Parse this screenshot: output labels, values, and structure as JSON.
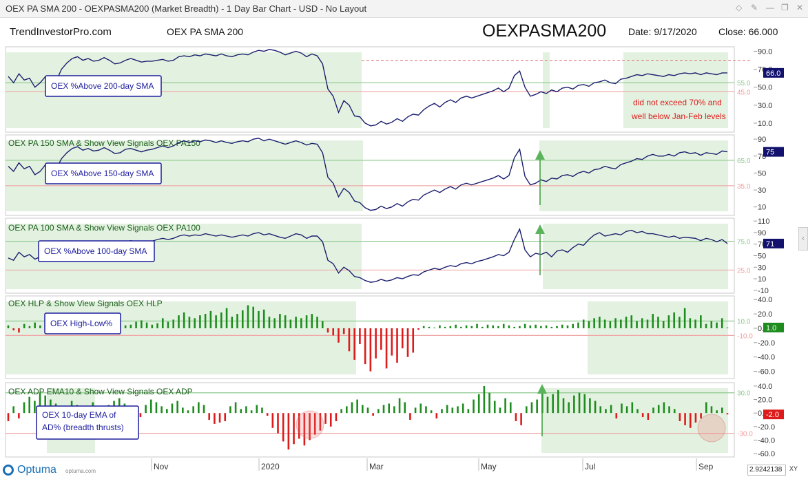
{
  "window": {
    "title": "OEX PA SMA 200 - OEXPASMA200 (Market Breadth) - 1 Day Bar Chart - USD - No Layout"
  },
  "header": {
    "source": "TrendInvestorPro.com",
    "chart_name": "OEX PA SMA 200",
    "symbol": "OEXPASMA200",
    "date": "Date: 9/17/2020",
    "close": "Close: 66.000"
  },
  "footer": {
    "brand": "Optuma",
    "brand_url": "optuma.com",
    "xy_readout": "2.9242138",
    "xy_label": "XY"
  },
  "colors": {
    "line": "#1b1f6e",
    "bar_up": "#1e8c1e",
    "bar_down": "#dd1b1b",
    "shade": "#e3f2e0",
    "upper_line": "#8cc88c",
    "lower_line": "#f0a8a8",
    "note_text": "#dd1b1b",
    "label_box_border": "#1d1d9e",
    "label_text": "#1d1d9e"
  },
  "chart_data": {
    "type": "line",
    "x_axis_labels": [
      "Nov",
      "2020",
      "Mar",
      "May",
      "Jul",
      "Sep"
    ],
    "panels": [
      {
        "title": "",
        "label_box": "OEX %Above 200-day SMA",
        "kind": "line",
        "yticks": [
          "90.0",
          "70.0",
          "50.0",
          "30.0",
          "10.0"
        ],
        "upper_level": "55.0",
        "lower_level": "45.0",
        "extra_level": 80,
        "last_value": "66.0",
        "note": [
          "did not exceed 70% and",
          "well below Jan-Feb levels"
        ],
        "values": [
          62,
          55,
          65,
          58,
          60,
          50,
          55,
          62,
          60,
          57,
          70,
          77,
          82,
          84,
          80,
          82,
          79,
          80,
          83,
          80,
          76,
          77,
          80,
          82,
          80,
          78,
          79,
          79,
          80,
          81,
          79,
          80,
          84,
          85,
          84,
          86,
          85,
          87,
          86,
          85,
          87,
          85,
          84,
          86,
          87,
          86,
          89,
          91,
          90,
          92,
          91,
          89,
          86,
          88,
          90,
          88,
          84,
          87,
          85,
          76,
          48,
          40,
          22,
          35,
          30,
          18,
          17,
          10,
          7,
          8,
          12,
          9,
          11,
          15,
          12,
          17,
          20,
          19,
          25,
          29,
          32,
          28,
          33,
          36,
          33,
          38,
          40,
          38,
          40,
          42,
          44,
          46,
          49,
          45,
          49,
          63,
          68,
          50,
          40,
          42,
          45,
          43,
          47,
          45,
          49,
          50,
          48,
          52,
          53,
          51,
          55,
          56,
          58,
          55,
          54,
          59,
          60,
          62,
          64,
          63,
          65,
          64,
          63,
          62,
          64,
          63,
          65,
          66,
          65,
          66,
          64,
          66,
          65,
          64,
          66,
          66
        ]
      },
      {
        "title": "OEX PA 150 SMA & Show View Signals OEX PA150",
        "label_box": "OEX %Above 150-day SMA",
        "kind": "line",
        "yticks": [
          "90",
          "70",
          "50",
          "30",
          "10"
        ],
        "upper_level": "65.0",
        "lower_level": "35.0",
        "last_value": "75",
        "values": [
          58,
          52,
          62,
          55,
          58,
          48,
          52,
          60,
          58,
          55,
          67,
          74,
          79,
          81,
          77,
          79,
          76,
          77,
          80,
          77,
          73,
          74,
          78,
          79,
          77,
          75,
          77,
          78,
          80,
          82,
          80,
          82,
          86,
          88,
          86,
          88,
          87,
          89,
          88,
          86,
          88,
          86,
          85,
          87,
          88,
          87,
          90,
          91,
          88,
          90,
          88,
          86,
          84,
          86,
          88,
          86,
          83,
          85,
          84,
          74,
          45,
          38,
          22,
          32,
          27,
          17,
          15,
          9,
          6,
          7,
          11,
          8,
          10,
          14,
          11,
          16,
          19,
          18,
          24,
          27,
          30,
          27,
          31,
          34,
          31,
          36,
          38,
          36,
          38,
          40,
          42,
          44,
          47,
          43,
          47,
          68,
          78,
          46,
          36,
          38,
          42,
          40,
          44,
          43,
          47,
          48,
          46,
          50,
          52,
          50,
          54,
          55,
          58,
          56,
          55,
          60,
          62,
          64,
          67,
          66,
          70,
          72,
          70,
          70,
          72,
          70,
          74,
          75,
          73,
          74,
          71,
          74,
          73,
          72,
          76,
          75
        ]
      },
      {
        "title": "OEX PA 100 SMA & Show View Signals OEX PA100",
        "label_box": "OEX %Above 100-day SMA",
        "kind": "line",
        "yticks": [
          "110",
          "90",
          "70",
          "50",
          "30",
          "10",
          "-10"
        ],
        "upper_level": "75.0",
        "lower_level": "25.0",
        "last_value": "71",
        "values": [
          46,
          42,
          56,
          48,
          52,
          44,
          48,
          54,
          50,
          46,
          60,
          66,
          72,
          74,
          70,
          72,
          68,
          70,
          74,
          70,
          68,
          70,
          74,
          76,
          74,
          72,
          74,
          75,
          78,
          80,
          78,
          80,
          84,
          86,
          84,
          86,
          85,
          88,
          86,
          84,
          86,
          84,
          82,
          84,
          86,
          84,
          88,
          90,
          86,
          88,
          85,
          82,
          80,
          84,
          88,
          86,
          80,
          84,
          84,
          74,
          42,
          36,
          20,
          30,
          24,
          14,
          12,
          7,
          4,
          5,
          9,
          6,
          8,
          12,
          10,
          14,
          17,
          16,
          22,
          25,
          28,
          26,
          30,
          33,
          31,
          36,
          38,
          36,
          40,
          42,
          45,
          48,
          52,
          50,
          56,
          78,
          96,
          60,
          48,
          54,
          52,
          56,
          48,
          58,
          60,
          56,
          64,
          70,
          68,
          78,
          86,
          90,
          84,
          86,
          88,
          86,
          92,
          94,
          90,
          92,
          88,
          88,
          86,
          84,
          82,
          84,
          80,
          82,
          81,
          80,
          76,
          80,
          78,
          74,
          78,
          71
        ]
      },
      {
        "title": "OEX HLP & Show View Signals OEX HLP",
        "label_box": "OEX High-Low%",
        "kind": "bar",
        "yticks": [
          "40.0",
          "20.0",
          "0.0",
          "-20.0",
          "-40.0",
          "-60.0"
        ],
        "upper_level": "10.0",
        "lower_level": "-10.0",
        "last_value": "1.0",
        "values": [
          4,
          -3,
          -6,
          6,
          3,
          8,
          4,
          2,
          5,
          10,
          6,
          4,
          8,
          6,
          3,
          10,
          5,
          8,
          4,
          7,
          12,
          6,
          4,
          5,
          9,
          11,
          8,
          5,
          7,
          14,
          9,
          12,
          18,
          22,
          16,
          14,
          18,
          20,
          24,
          18,
          22,
          28,
          16,
          20,
          25,
          32,
          30,
          24,
          26,
          16,
          14,
          20,
          18,
          12,
          16,
          14,
          18,
          20,
          16,
          10,
          -6,
          -10,
          -20,
          -8,
          -32,
          -44,
          -22,
          -50,
          -60,
          -42,
          -30,
          -56,
          -38,
          -48,
          -28,
          -40,
          -34,
          -2,
          3,
          2,
          1,
          4,
          2,
          3,
          5,
          2,
          4,
          3,
          6,
          2,
          5,
          4,
          3,
          6,
          4,
          2,
          3,
          6,
          4,
          5,
          3,
          4,
          2,
          3,
          5,
          4,
          6,
          8,
          12,
          10,
          14,
          16,
          12,
          10,
          14,
          12,
          16,
          18,
          10,
          14,
          12,
          20,
          16,
          10,
          18,
          22,
          16,
          28,
          14,
          12,
          18,
          6,
          10,
          8,
          14,
          1
        ]
      },
      {
        "title": "OEX ADP EMA10 & Show View Signals OEX ADP",
        "label_box": "OEX 10-day EMA of AD% (breadth thrusts)",
        "kind": "bar",
        "yticks": [
          "40.0",
          "20.0",
          "0.0",
          "-20.0",
          "-40.0",
          "-60.0"
        ],
        "upper_level": "30.0",
        "lower_level": "-30.0",
        "last_value": "-2.0",
        "values": [
          -12,
          10,
          -8,
          16,
          24,
          18,
          30,
          26,
          20,
          14,
          10,
          6,
          18,
          12,
          -6,
          8,
          16,
          10,
          -4,
          12,
          18,
          22,
          14,
          8,
          10,
          -6,
          12,
          20,
          16,
          10,
          6,
          14,
          18,
          8,
          4,
          10,
          16,
          12,
          -10,
          -16,
          -14,
          -12,
          10,
          16,
          6,
          10,
          4,
          12,
          8,
          -4,
          -22,
          -30,
          -42,
          -54,
          -46,
          -38,
          -48,
          -40,
          -32,
          -26,
          -16,
          -20,
          -12,
          6,
          10,
          16,
          20,
          12,
          8,
          -4,
          6,
          12,
          14,
          10,
          22,
          16,
          -10,
          8,
          14,
          10,
          4,
          -8,
          6,
          12,
          8,
          10,
          14,
          6,
          20,
          28,
          40,
          30,
          18,
          8,
          22,
          16,
          -12,
          -18,
          10,
          16,
          20,
          30,
          24,
          28,
          34,
          22,
          16,
          26,
          30,
          28,
          22,
          18,
          10,
          6,
          12,
          -8,
          14,
          10,
          16,
          6,
          -6,
          -10,
          8,
          12,
          16,
          10,
          6,
          -12,
          -18,
          -22,
          -14,
          -8,
          16,
          10,
          4,
          8,
          -2
        ]
      }
    ]
  }
}
